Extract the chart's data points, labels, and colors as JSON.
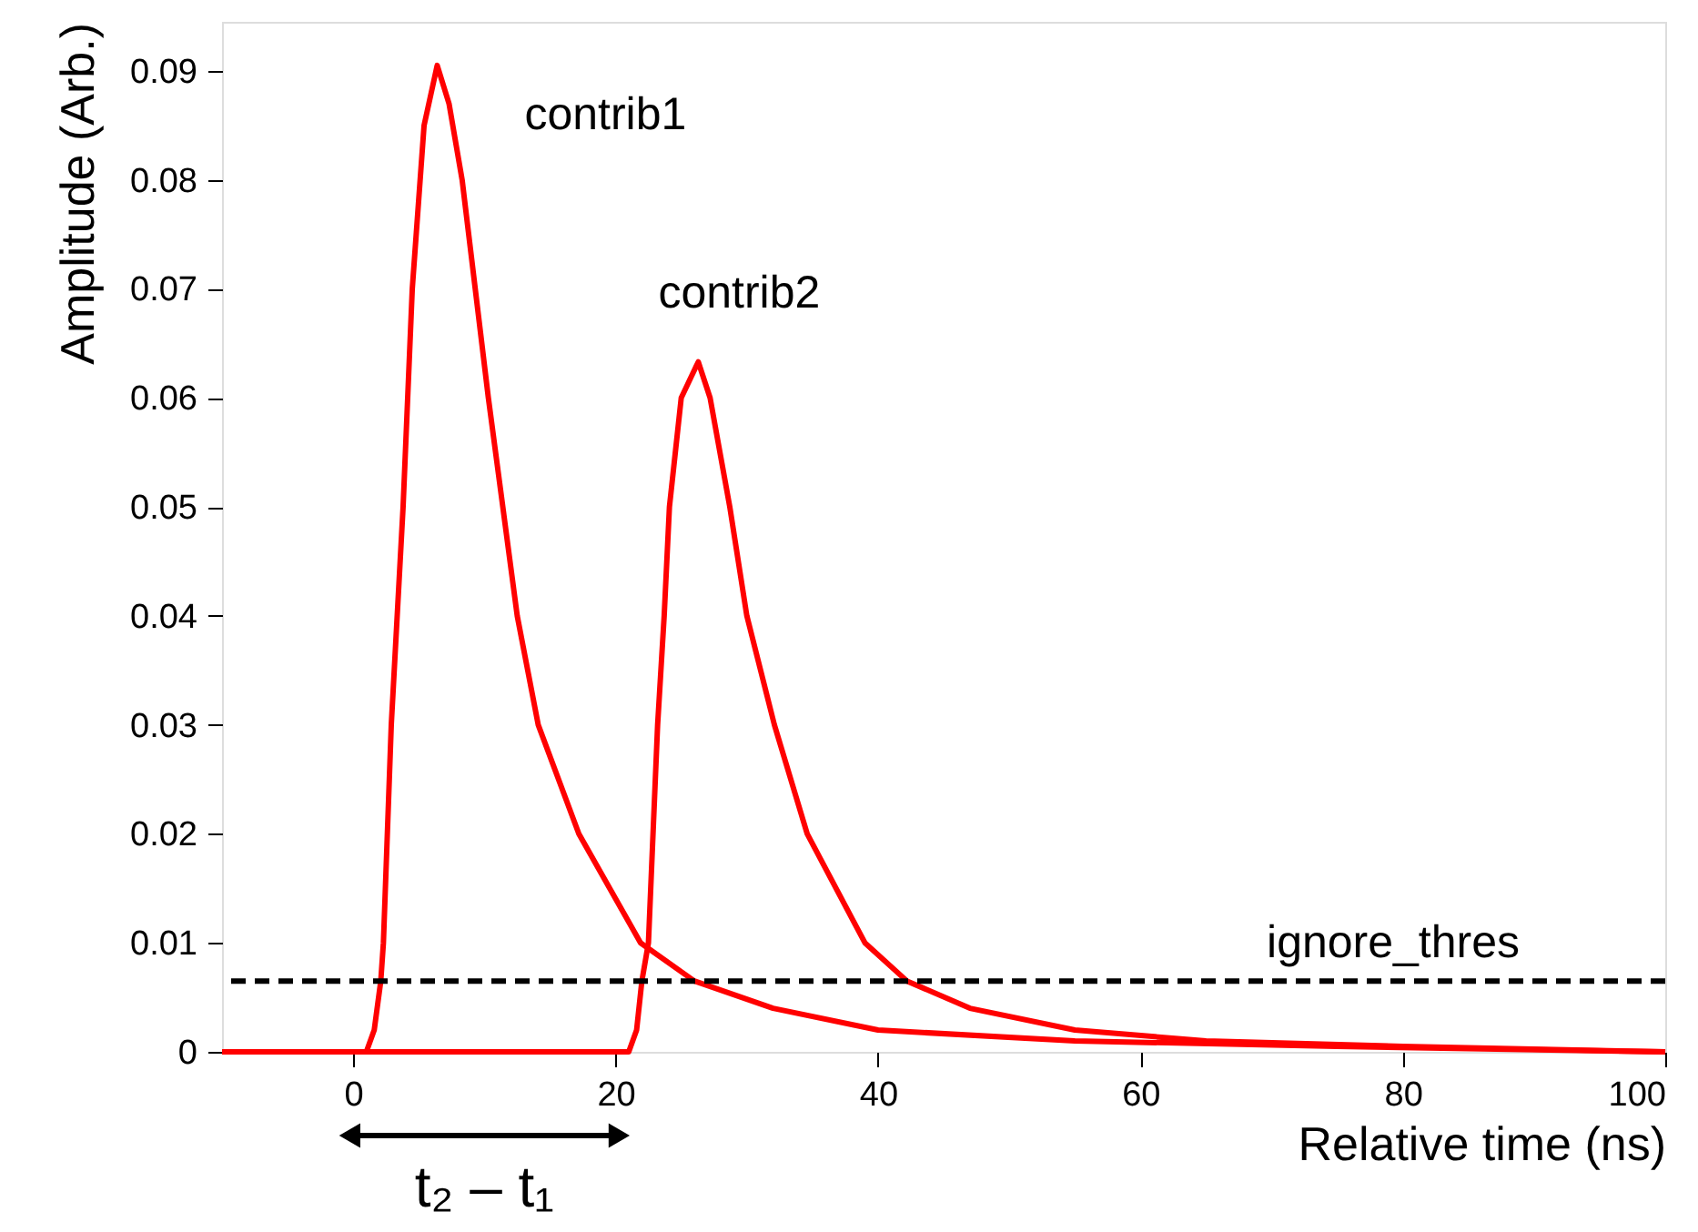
{
  "chart_data": {
    "type": "line",
    "xlabel": "Relative time (ns)",
    "ylabel": "Amplitude (Arb.)",
    "xlim": [
      -10,
      100
    ],
    "ylim": [
      0,
      0.0945
    ],
    "xticks": [
      0,
      20,
      40,
      60,
      80,
      100
    ],
    "yticks": [
      0,
      0.01,
      0.02,
      0.03,
      0.04,
      0.05,
      0.06,
      0.07,
      0.08,
      0.09
    ],
    "grid": false,
    "legend": false,
    "marker": "none",
    "line_style": "solid",
    "series": [
      {
        "name": "contrib1",
        "color": "#ff0000",
        "x": [
          -10,
          0,
          1,
          1.6,
          2.1,
          2.3,
          2.9,
          3.8,
          4.5,
          5.4,
          6.4,
          7.3,
          8.3,
          10.3,
          12.5,
          14.1,
          17.2,
          21.9,
          26,
          32,
          40,
          55,
          75,
          100
        ],
        "values": [
          0,
          0,
          0,
          0.002,
          0.0065,
          0.01,
          0.03,
          0.05,
          0.07,
          0.085,
          0.0905,
          0.087,
          0.08,
          0.06,
          0.04,
          0.03,
          0.02,
          0.01,
          0.0065,
          0.004,
          0.002,
          0.001,
          0.0005,
          0
        ]
      },
      {
        "name": "contrib2",
        "color": "#ff0000",
        "x": [
          -10,
          21,
          21.6,
          22.0,
          22.5,
          23.2,
          23.7,
          24.1,
          25.0,
          26.3,
          27.2,
          28.7,
          30.0,
          32.1,
          34.6,
          39.0,
          42.2,
          47,
          55,
          65,
          80,
          100
        ],
        "values": [
          0,
          0,
          0.002,
          0.0065,
          0.01,
          0.03,
          0.04,
          0.05,
          0.06,
          0.0633,
          0.06,
          0.05,
          0.04,
          0.03,
          0.02,
          0.01,
          0.0065,
          0.004,
          0.002,
          0.001,
          0.0005,
          0
        ]
      }
    ],
    "ref_lines": [
      {
        "axis": "y",
        "value": 0.0065,
        "label": "ignore_thres",
        "color": "#000000",
        "line_style": "dashed"
      }
    ],
    "annotations": [
      {
        "text": "t₂ – t₁",
        "x": 10,
        "y": 0
      }
    ]
  }
}
